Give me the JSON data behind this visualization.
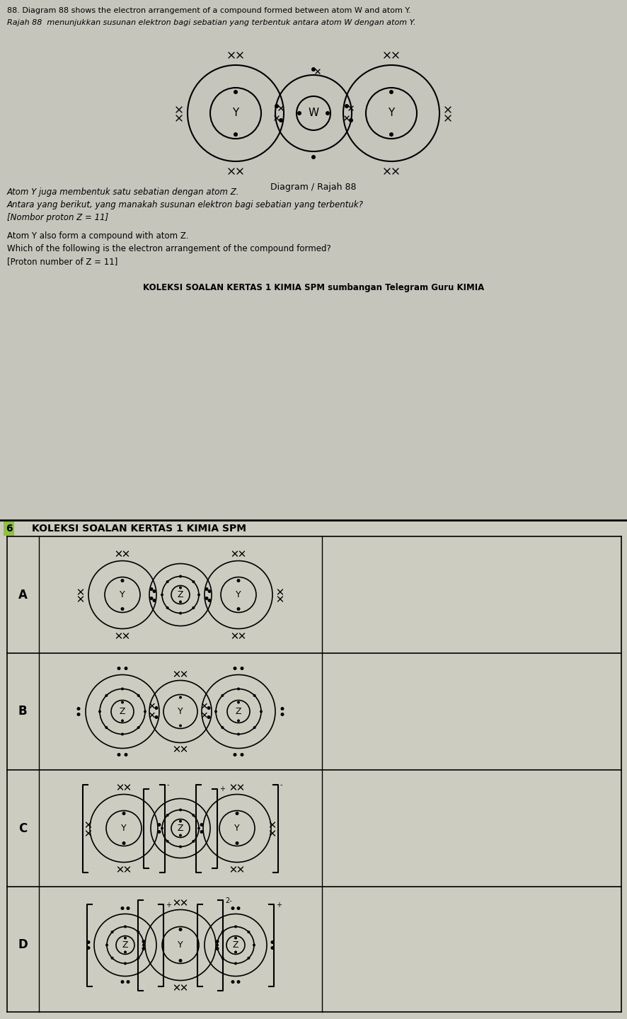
{
  "title_line1": "88. Diagram 88 shows the electron arrangement of a compound formed between atom W and atom Y.",
  "title_line2": "Rajah 88  menunjukkan susunan elektron bagi sebatian yang terbentuk antara atom W dengan atom Y.",
  "diagram_label": "Diagram / Rajah 88",
  "question_line1": "Atom Y juga membentuk satu sebatian dengan atom Z.",
  "question_line2": "Antara yang berikut, yang manakah susunan elektron bagi sebatian yang terbentuk?",
  "question_line3": "[Nombor proton Z = 11]",
  "question_line4": "Atom Y also form a compound with atom Z.",
  "question_line5": "Which of the following is the electron arrangement of the compound formed?",
  "question_line6": "[Proton number of Z = 11]",
  "koleksi1": "KOLEKSI SOALAN KERTAS 1 KIMIA SPM sumbangan Telegram Guru KIMIA",
  "koleksi2": "KOLEKSI SOALAN KERTAS 1 KIMIA SPM",
  "page_num": "6",
  "bg_top": "#c8c8c0",
  "bg_bottom": "#c8c8b8",
  "white": "#ffffff",
  "black": "#000000",
  "options": [
    "A",
    "B",
    "C",
    "D"
  ],
  "grid_bg": "#d0d0b8"
}
